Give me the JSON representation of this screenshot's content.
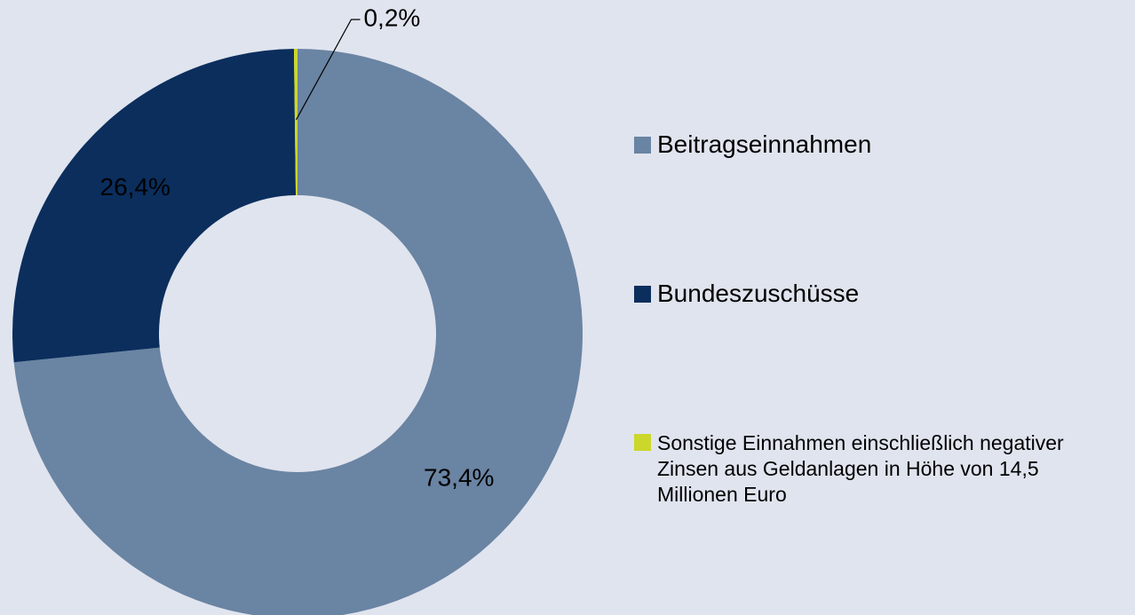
{
  "chart_data": {
    "type": "donut",
    "series": [
      {
        "name": "Beitragseinnahmen",
        "color": "#6a84a3",
        "values": [
          73.4
        ],
        "value_labels": [
          "73,4%"
        ]
      },
      {
        "name": "Bundeszuschüsse",
        "color": "#0b2e5d",
        "values": [
          26.4
        ],
        "value_labels": [
          "26,4%"
        ]
      },
      {
        "name": "Sonstige Einnahmen einschließlich negativer Zinsen aus Geldanlagen in Höhe von 14,5 Millionen Euro",
        "color": "#cbd72b",
        "values": [
          0.2
        ],
        "value_labels": [
          "0,2%"
        ]
      }
    ],
    "legend": "right"
  }
}
